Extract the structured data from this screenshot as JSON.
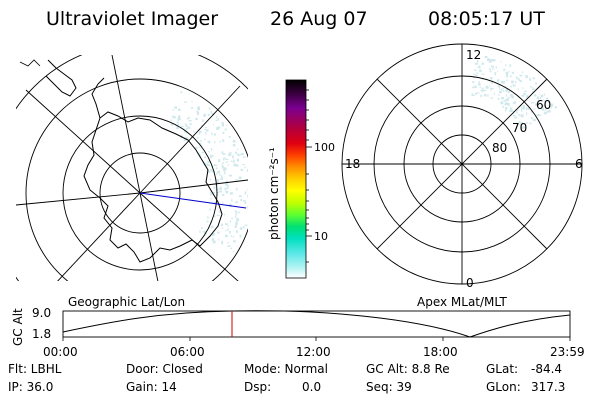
{
  "header": {
    "instrument": "Ultraviolet Imager",
    "date": "26 Aug 07",
    "time": "08:05:17 UT"
  },
  "geo_panel": {
    "label": "Geographic Lat/Lon"
  },
  "apex_panel": {
    "label": "Apex MLat/MLT",
    "mlt_labels": {
      "top": "12",
      "left": "18",
      "right": "6",
      "bottom": "0"
    },
    "mlat_labels": [
      "60",
      "70",
      "80"
    ]
  },
  "colorbar": {
    "unit_label": "photon cm⁻²s⁻¹",
    "tick_100": "100",
    "tick_10": "10",
    "colors": [
      "#000000",
      "#3a0040",
      "#7a0090",
      "#b00040",
      "#e00010",
      "#ff4000",
      "#ff9000",
      "#ffd000",
      "#ffff00",
      "#c0ff00",
      "#60ff30",
      "#00e070",
      "#00e0c0",
      "#60e8e8",
      "#b8f4f4",
      "#ffffff"
    ]
  },
  "altitude_plot": {
    "ylabel": "GC Alt",
    "yticks": [
      "9.0",
      "1.8"
    ],
    "xticks": [
      "00:00",
      "06:00",
      "12:00",
      "18:00",
      "23:59"
    ],
    "current_time_marker": "08:05:17"
  },
  "footer": {
    "flt": "Flt: LBHL",
    "ip": "IP: 36.0",
    "door": "Door: Closed",
    "gain": "Gain: 14",
    "mode": "Mode: Normal",
    "dsp_label": "Dsp:",
    "dsp_value": "0.0",
    "gc_alt": "GC Alt: 8.8 Re",
    "seq": "Seq: 39",
    "glat_label": "GLat:",
    "glat_value": "-84.4",
    "glon_label": "GLon:",
    "glon_value": "317.3"
  },
  "accent_colors": {
    "spacecraft_track": "#0000cc",
    "time_marker": "#cc0000",
    "aurora": "#cfe8ec"
  }
}
